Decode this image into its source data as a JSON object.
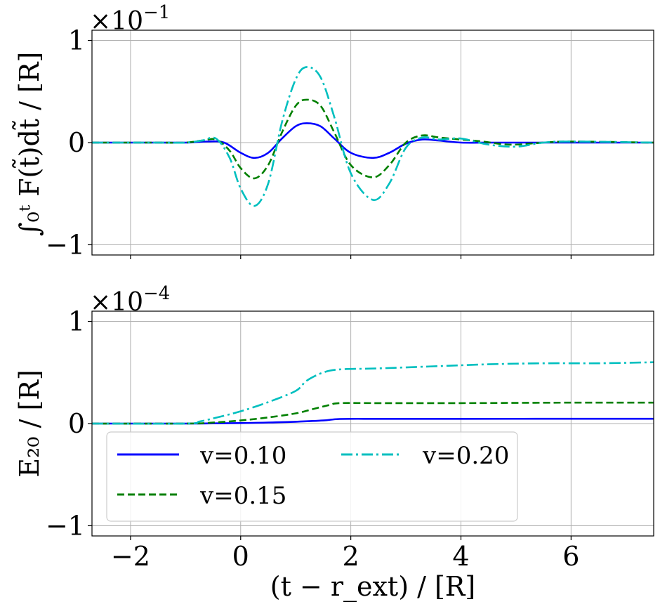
{
  "chart_data": [
    {
      "type": "line",
      "id": "top",
      "ylabel": "∫₀ᵗ F(t̃)dt̃ / [R]",
      "y_exponent_base": "×10",
      "y_exponent": "−1",
      "xlim": [
        -2.7,
        7.5
      ],
      "ylim": [
        -1.1,
        1.1
      ],
      "xticks": [
        -2,
        0,
        2,
        4,
        6
      ],
      "yticks": [
        -1,
        0,
        1
      ],
      "ytick_labels": [
        "−1",
        "0",
        "1"
      ],
      "grid": true,
      "series": [
        {
          "name": "v=0.10",
          "color": "#0000ff",
          "style": "solid",
          "x": [
            -2.7,
            -1.5,
            -1.0,
            -0.6,
            -0.3,
            0.0,
            0.25,
            0.5,
            0.75,
            1.0,
            1.2,
            1.45,
            1.7,
            2.0,
            2.4,
            2.7,
            3.0,
            3.3,
            3.6,
            4.0,
            4.5,
            5.0,
            6.0,
            7.5
          ],
          "y": [
            0,
            0,
            0,
            0.01,
            0.0,
            -0.1,
            -0.15,
            -0.1,
            0.04,
            0.16,
            0.19,
            0.16,
            0.04,
            -0.1,
            -0.15,
            -0.1,
            -0.01,
            0.03,
            0.02,
            0.0,
            0.0,
            0.0,
            0.0,
            0.0
          ]
        },
        {
          "name": "v=0.15",
          "color": "#008000",
          "style": "dashed",
          "x": [
            -2.7,
            -1.5,
            -1.0,
            -0.7,
            -0.45,
            -0.2,
            0.0,
            0.25,
            0.5,
            0.75,
            1.0,
            1.2,
            1.45,
            1.7,
            2.0,
            2.4,
            2.7,
            3.0,
            3.3,
            3.6,
            4.0,
            4.4,
            4.9,
            5.5,
            6.0,
            7.5
          ],
          "y": [
            0,
            0,
            0,
            0.02,
            0.03,
            -0.08,
            -0.25,
            -0.35,
            -0.22,
            0.1,
            0.36,
            0.42,
            0.36,
            0.1,
            -0.22,
            -0.34,
            -0.22,
            0.0,
            0.07,
            0.05,
            0.03,
            0.01,
            -0.02,
            0.0,
            0.01,
            0.0
          ]
        },
        {
          "name": "v=0.20",
          "color": "#00bfbf",
          "style": "dashdot",
          "x": [
            -2.7,
            -1.5,
            -1.0,
            -0.7,
            -0.45,
            -0.2,
            0.0,
            0.25,
            0.5,
            0.75,
            1.0,
            1.2,
            1.45,
            1.7,
            2.0,
            2.4,
            2.7,
            3.0,
            3.3,
            3.6,
            4.0,
            4.5,
            5.0,
            5.5,
            6.0,
            7.5
          ],
          "y": [
            0,
            0,
            0,
            0.02,
            0.04,
            -0.15,
            -0.45,
            -0.62,
            -0.4,
            0.2,
            0.62,
            0.74,
            0.64,
            0.25,
            -0.3,
            -0.56,
            -0.4,
            -0.05,
            0.05,
            0.03,
            0.04,
            -0.02,
            -0.04,
            0.0,
            0.01,
            0.0
          ]
        }
      ]
    },
    {
      "type": "line",
      "id": "bottom",
      "ylabel": "E₂₀ / [R]",
      "xlabel": "(t − r_ext) / [R]",
      "y_exponent_base": "×10",
      "y_exponent": "−4",
      "xlim": [
        -2.7,
        7.5
      ],
      "ylim": [
        -1.1,
        1.1
      ],
      "xticks": [
        -2,
        0,
        2,
        4,
        6
      ],
      "xtick_labels": [
        "−2",
        "0",
        "2",
        "4",
        "6"
      ],
      "yticks": [
        -1,
        0,
        1
      ],
      "ytick_labels": [
        "−1",
        "0",
        "1"
      ],
      "grid": true,
      "legend_position": "lower-left",
      "series": [
        {
          "name": "v=0.10",
          "color": "#0000ff",
          "style": "solid",
          "x": [
            -2.7,
            -1.0,
            -0.5,
            0.0,
            0.5,
            1.0,
            1.5,
            1.8,
            2.5,
            4.0,
            6.0,
            7.5
          ],
          "y": [
            0,
            0,
            0.002,
            0.005,
            0.01,
            0.018,
            0.03,
            0.045,
            0.046,
            0.046,
            0.047,
            0.047
          ]
        },
        {
          "name": "v=0.15",
          "color": "#008000",
          "style": "dashed",
          "x": [
            -2.7,
            -1.0,
            -0.5,
            0.0,
            0.5,
            1.0,
            1.3,
            1.6,
            1.8,
            2.5,
            4.0,
            6.0,
            7.5
          ],
          "y": [
            0,
            0,
            0.01,
            0.03,
            0.06,
            0.1,
            0.14,
            0.18,
            0.2,
            0.2,
            0.2,
            0.205,
            0.205
          ]
        },
        {
          "name": "v=0.20",
          "color": "#00bfbf",
          "style": "dashdot",
          "x": [
            -2.7,
            -1.0,
            -0.75,
            -0.5,
            0.0,
            0.5,
            1.0,
            1.2,
            1.5,
            1.8,
            2.5,
            3.5,
            4.5,
            5.5,
            6.5,
            7.5
          ],
          "y": [
            0,
            0,
            0.02,
            0.05,
            0.12,
            0.21,
            0.32,
            0.42,
            0.5,
            0.53,
            0.54,
            0.56,
            0.58,
            0.59,
            0.59,
            0.6
          ]
        }
      ]
    }
  ],
  "legend": {
    "entries": [
      {
        "label": "v=0.10",
        "color": "#0000ff",
        "style": "solid"
      },
      {
        "label": "v=0.20",
        "color": "#00bfbf",
        "style": "dashdot"
      },
      {
        "label": "v=0.15",
        "color": "#008000",
        "style": "dashed"
      }
    ]
  }
}
